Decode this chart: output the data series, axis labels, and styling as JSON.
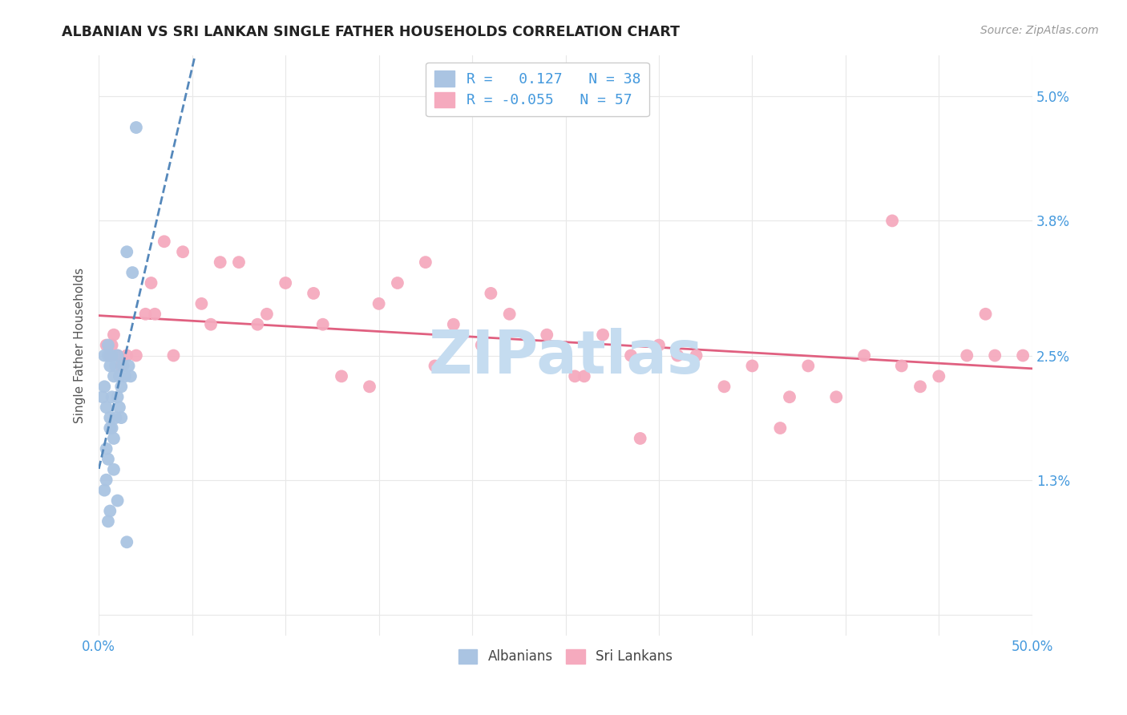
{
  "title": "ALBANIAN VS SRI LANKAN SINGLE FATHER HOUSEHOLDS CORRELATION CHART",
  "source": "Source: ZipAtlas.com",
  "ylabel": "Single Father Households",
  "ytick_labels": [
    "",
    "1.3%",
    "2.5%",
    "3.8%",
    "5.0%"
  ],
  "ytick_values": [
    0.0,
    1.3,
    2.5,
    3.8,
    5.0
  ],
  "xmin": 0.0,
  "xmax": 50.0,
  "ymin": -0.2,
  "ymax": 5.4,
  "legend_label1": "R =   0.127   N = 38",
  "legend_label2": "R = -0.055   N = 57",
  "legend_label_albanians": "Albanians",
  "legend_label_srilankans": "Sri Lankans",
  "color_albanian": "#aac4e2",
  "color_srilankan": "#f5aabe",
  "color_line_albanian": "#5588bb",
  "color_line_srilankan": "#e06080",
  "color_text_blue": "#4499dd",
  "color_watermark": "#c5dcf0",
  "albanian_x": [
    0.3,
    0.5,
    0.6,
    0.7,
    0.8,
    0.9,
    1.0,
    1.1,
    1.2,
    1.3,
    1.4,
    1.5,
    1.6,
    1.7,
    1.8,
    0.2,
    0.3,
    0.4,
    0.5,
    0.6,
    0.7,
    0.8,
    0.9,
    1.0,
    1.1,
    1.2,
    0.4,
    0.5,
    0.6,
    0.7,
    0.3,
    0.4,
    0.5,
    0.6,
    0.8,
    1.0,
    1.5,
    2.0
  ],
  "albanian_y": [
    2.5,
    2.6,
    2.4,
    2.5,
    2.3,
    2.4,
    2.5,
    2.3,
    2.2,
    2.4,
    2.3,
    3.5,
    2.4,
    2.3,
    3.3,
    2.1,
    2.2,
    2.0,
    2.5,
    1.9,
    1.8,
    1.7,
    1.9,
    2.1,
    2.0,
    1.9,
    1.6,
    1.5,
    1.8,
    2.1,
    1.2,
    1.3,
    0.9,
    1.0,
    1.4,
    1.1,
    0.7,
    4.7
  ],
  "srilankan_x": [
    0.4,
    0.6,
    0.8,
    1.0,
    1.5,
    2.0,
    2.5,
    3.0,
    3.5,
    4.5,
    5.5,
    6.5,
    7.5,
    8.5,
    10.0,
    11.5,
    13.0,
    14.5,
    16.0,
    17.5,
    19.0,
    20.5,
    22.0,
    24.0,
    25.5,
    27.0,
    28.5,
    30.0,
    32.0,
    33.5,
    35.0,
    36.5,
    38.0,
    39.5,
    41.0,
    43.0,
    45.0,
    46.5,
    48.0,
    49.5,
    0.7,
    1.2,
    2.8,
    4.0,
    6.0,
    9.0,
    12.0,
    15.0,
    18.0,
    21.0,
    26.0,
    31.0,
    37.0,
    42.5,
    47.5,
    29.0,
    44.0
  ],
  "srilankan_y": [
    2.6,
    2.5,
    2.7,
    2.5,
    2.5,
    2.5,
    2.9,
    2.9,
    3.6,
    3.5,
    3.0,
    3.4,
    3.4,
    2.8,
    3.2,
    3.1,
    2.3,
    2.2,
    3.2,
    3.4,
    2.8,
    2.6,
    2.9,
    2.7,
    2.3,
    2.7,
    2.5,
    2.6,
    2.5,
    2.2,
    2.4,
    1.8,
    2.4,
    2.1,
    2.5,
    2.4,
    2.3,
    2.5,
    2.5,
    2.5,
    2.6,
    2.4,
    3.2,
    2.5,
    2.8,
    2.9,
    2.8,
    3.0,
    2.4,
    3.1,
    2.3,
    2.5,
    2.1,
    3.8,
    2.9,
    1.7,
    2.2
  ],
  "grid_color": "#e8e8e8",
  "background_color": "#ffffff",
  "R_albanian": 0.127,
  "R_srilankan": -0.055
}
